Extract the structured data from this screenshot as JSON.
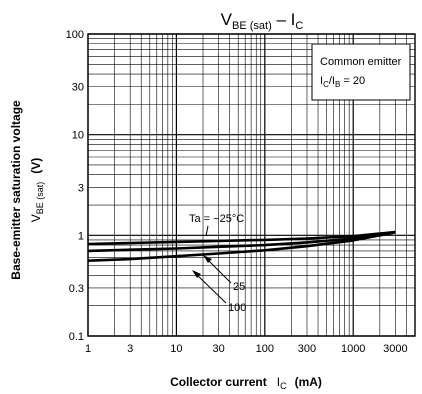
{
  "chart_data": {
    "type": "line",
    "title": {
      "main": "V",
      "sub": "BE (sat)",
      "dash": " – I",
      "sub2": "C"
    },
    "xlabel": {
      "text": "Collector current",
      "symbol": "I",
      "symbol_sub": "C",
      "unit": "(mA)"
    },
    "ylabel": {
      "line1": "Base-emitter saturation voltage",
      "symbol": "V",
      "symbol_sub": "BE (sat)",
      "unit": "(V)"
    },
    "x_scale": "log",
    "y_scale": "log",
    "xlim": [
      1,
      5000
    ],
    "ylim": [
      0.1,
      100
    ],
    "x_ticks": [
      1,
      3,
      10,
      30,
      100,
      300,
      1000,
      3000
    ],
    "x_tick_labels": [
      "1",
      "3",
      "10",
      "30",
      "100",
      "300",
      "1000",
      "3000"
    ],
    "y_ticks": [
      0.1,
      0.3,
      1,
      3,
      10,
      30,
      100
    ],
    "y_tick_labels": [
      "0.1",
      "0.3",
      "1",
      "3",
      "10",
      "30",
      "100"
    ],
    "grid": true,
    "legend": {
      "position": "top-right",
      "line1": "Common emitter",
      "line2_symbol": "I",
      "line2_sub1": "C",
      "line2_mid": "/I",
      "line2_sub2": "B",
      "line2_value": " = 20"
    },
    "series": [
      {
        "label": "Ta = −25°C",
        "x": [
          1,
          3,
          10,
          30,
          100,
          300,
          1000,
          3000
        ],
        "y": [
          0.82,
          0.84,
          0.86,
          0.88,
          0.9,
          0.93,
          0.98,
          1.08
        ]
      },
      {
        "label": "25",
        "x": [
          1,
          3,
          10,
          30,
          100,
          300,
          1000,
          3000
        ],
        "y": [
          0.7,
          0.72,
          0.74,
          0.77,
          0.8,
          0.85,
          0.93,
          1.08
        ]
      },
      {
        "label": "100",
        "x": [
          1,
          3,
          10,
          30,
          100,
          300,
          1000,
          3000
        ],
        "y": [
          0.56,
          0.58,
          0.62,
          0.66,
          0.71,
          0.78,
          0.89,
          1.07
        ]
      }
    ]
  }
}
